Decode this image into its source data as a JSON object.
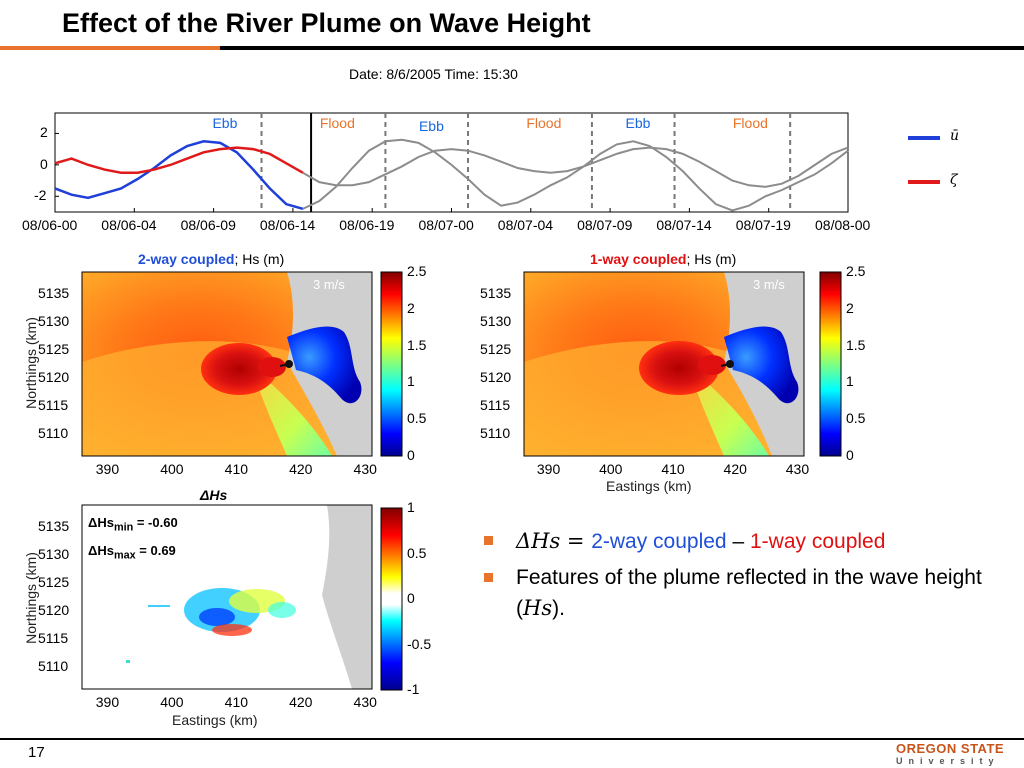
{
  "slide": {
    "title": "Effect of the River Plume on Wave Height",
    "page_number": "17",
    "logo_top": "OREGON STATE",
    "logo_bottom": "University"
  },
  "colors": {
    "accent_orange": "#e8732a",
    "u_bar_blue": "#1f3fd8",
    "zeta_red": "#e01a1a",
    "future_gray": "#8c8c8c"
  },
  "bullets": [
    {
      "prefix": "ΔHs = ",
      "two_way": "2-way coupled",
      "sep": " – ",
      "one_way": "1-way coupled"
    },
    {
      "text": "Features of the plume reflected in the wave height (",
      "italic": "Hs",
      "suffix": ")."
    }
  ],
  "chart_data": [
    {
      "type": "line",
      "title": "Date: 8/6/2005   Time: 15:30",
      "x_ticks": [
        "08/06-00",
        "08/06-04",
        "08/06-09",
        "08/06-14",
        "08/06-19",
        "08/07-00",
        "08/07-04",
        "08/07-09",
        "08/07-14",
        "08/07-19",
        "08/08-00"
      ],
      "xlim_hours": [
        0,
        48
      ],
      "ylim": [
        -3,
        3.3
      ],
      "y_ticks": [
        2,
        0,
        -2
      ],
      "current_time_hours": 15.5,
      "tide_labels": [
        {
          "text": "Ebb",
          "color": "#1a66e0",
          "x": 10.5
        },
        {
          "text": "Flood",
          "color": "#e8732a",
          "x": 17.0
        },
        {
          "text": "Ebb",
          "color": "#1a66e0",
          "x": 23.0
        },
        {
          "text": "Flood",
          "color": "#e8732a",
          "x": 29.5
        },
        {
          "text": "Ebb",
          "color": "#1a66e0",
          "x": 35.5
        },
        {
          "text": "Flood",
          "color": "#e8732a",
          "x": 42.0
        }
      ],
      "phase_lines_hours": [
        12.5,
        20.0,
        25.0,
        32.5,
        37.5,
        44.5
      ],
      "legend": [
        {
          "symbol": "ū",
          "color": "#1f3fd8"
        },
        {
          "symbol": "ζ",
          "color": "#e01a1a"
        }
      ],
      "series": [
        {
          "symbol": "ū",
          "x": [
            0,
            1,
            2,
            3,
            4,
            5,
            6,
            7,
            8,
            9,
            10,
            11,
            12,
            13,
            14,
            15,
            16,
            17,
            18,
            19,
            20,
            21,
            22,
            23,
            24,
            25,
            26,
            27,
            28,
            29,
            30,
            31,
            32,
            33,
            34,
            35,
            36,
            37,
            38,
            39,
            40,
            41,
            42,
            43,
            44,
            45,
            46,
            47,
            48
          ],
          "y": [
            -1.5,
            -1.9,
            -2.1,
            -1.8,
            -1.5,
            -0.9,
            -0.2,
            0.6,
            1.2,
            1.5,
            1.4,
            0.8,
            -0.3,
            -1.5,
            -2.5,
            -2.8,
            -2.3,
            -1.4,
            -0.2,
            0.9,
            1.5,
            1.6,
            1.4,
            0.8,
            0.0,
            -0.9,
            -1.9,
            -2.6,
            -2.4,
            -1.9,
            -1.3,
            -0.8,
            -0.1,
            0.7,
            1.3,
            1.5,
            1.2,
            0.5,
            -0.4,
            -1.5,
            -2.5,
            -2.9,
            -2.6,
            -2.0,
            -1.6,
            -1.1,
            -0.6,
            0.1,
            0.9
          ]
        },
        {
          "symbol": "ζ",
          "x": [
            0,
            1,
            2,
            3,
            4,
            5,
            6,
            7,
            8,
            9,
            10,
            11,
            12,
            13,
            14,
            15,
            16,
            17,
            18,
            19,
            20,
            21,
            22,
            23,
            24,
            25,
            26,
            27,
            28,
            29,
            30,
            31,
            32,
            33,
            34,
            35,
            36,
            37,
            38,
            39,
            40,
            41,
            42,
            43,
            44,
            45,
            46,
            47,
            48
          ],
          "y": [
            0.1,
            0.4,
            0.0,
            -0.3,
            -0.5,
            -0.5,
            -0.3,
            0.0,
            0.4,
            0.8,
            1.0,
            1.1,
            1.0,
            0.7,
            0.1,
            -0.5,
            -1.1,
            -1.3,
            -1.3,
            -1.1,
            -0.6,
            -0.1,
            0.5,
            0.9,
            1.0,
            0.9,
            0.6,
            0.2,
            -0.2,
            -0.4,
            -0.5,
            -0.4,
            -0.1,
            0.3,
            0.7,
            1.0,
            1.1,
            1.0,
            0.7,
            0.2,
            -0.4,
            -1.0,
            -1.3,
            -1.4,
            -1.2,
            -0.7,
            0.0,
            0.7,
            1.1
          ]
        }
      ]
    },
    {
      "type": "heatmap",
      "title_bold": "2-way coupled",
      "title_rest": "; Hs (m)",
      "title_color": "#1f3fd8",
      "ylabel": "Northings (km)",
      "x_ticks": [
        390,
        400,
        410,
        420,
        430
      ],
      "y_ticks": [
        5135,
        5130,
        5125,
        5120,
        5115,
        5110
      ],
      "xlim": [
        386,
        431
      ],
      "ylim": [
        5106,
        5139
      ],
      "colorbar": {
        "ticks": [
          2.5,
          2,
          1.5,
          1,
          0.5,
          0
        ],
        "range": [
          0,
          2.5
        ]
      },
      "vector_label": "3 m/s"
    },
    {
      "type": "heatmap",
      "title_bold": "1-way coupled",
      "title_rest": "; Hs (m)",
      "title_color": "#e01010",
      "xlabel": "Eastings (km)",
      "x_ticks": [
        390,
        400,
        410,
        420,
        430
      ],
      "y_ticks": [
        5135,
        5130,
        5125,
        5120,
        5115,
        5110
      ],
      "xlim": [
        386,
        431
      ],
      "ylim": [
        5106,
        5139
      ],
      "colorbar": {
        "ticks": [
          2.5,
          2,
          1.5,
          1,
          0.5,
          0
        ],
        "range": [
          0,
          2.5
        ]
      },
      "vector_label": "3 m/s"
    },
    {
      "type": "heatmap",
      "title": "ΔHs",
      "xlabel": "Eastings (km)",
      "ylabel": "Northings (km)",
      "x_ticks": [
        390,
        400,
        410,
        420,
        430
      ],
      "y_ticks": [
        5135,
        5130,
        5125,
        5120,
        5115,
        5110
      ],
      "xlim": [
        386,
        431
      ],
      "ylim": [
        5106,
        5139
      ],
      "colorbar": {
        "ticks": [
          1,
          0.5,
          0,
          -0.5,
          -1
        ],
        "range": [
          -1,
          1
        ]
      },
      "annotations": [
        {
          "label": "ΔHs",
          "sub": "min",
          "value": " = -0.60"
        },
        {
          "label": "ΔHs",
          "sub": "max",
          "value": " = 0.69"
        }
      ]
    }
  ]
}
